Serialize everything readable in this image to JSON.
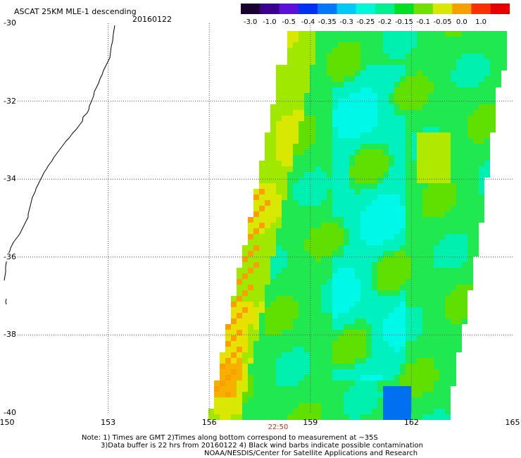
{
  "header": {
    "title": "ASCAT 25KM MLE-1 descending",
    "date": "20160122"
  },
  "colorbar": {
    "ticks": [
      "-3.0",
      "-1.0",
      "-0.5",
      "-0.4",
      "-0.35",
      "-0.3",
      "-0.25",
      "-0.2",
      "-0.15",
      "-0.1",
      "-0.05",
      "0.0",
      "1.0"
    ],
    "colors": [
      "#1a0030",
      "#3c0090",
      "#5a10d8",
      "#0030f0",
      "#0078f8",
      "#00c8f8",
      "#00f8d8",
      "#00f090",
      "#00e020",
      "#70e000",
      "#d8e800",
      "#f8a000",
      "#f83000",
      "#e80000"
    ]
  },
  "map": {
    "lat_labels": [
      "-30",
      "-32",
      "-34",
      "-36",
      "-38",
      "-40"
    ],
    "lon_labels": [
      "150",
      "153",
      "156",
      "159",
      "162",
      "165"
    ],
    "lat_range": [
      -30,
      -40
    ],
    "lon_range": [
      150,
      165
    ],
    "overpass_time": "22:50"
  },
  "notes": {
    "line1": "Note: 1) Times are GMT 2)Times along bottom correspond to measurement at ~35S",
    "line2": "3)Data buffer is 22 hrs from 20160122 4) Black wind barbs indicate possible contamination",
    "line3": "NOAA/NESDIS/Center for Satellite Applications and Research"
  }
}
